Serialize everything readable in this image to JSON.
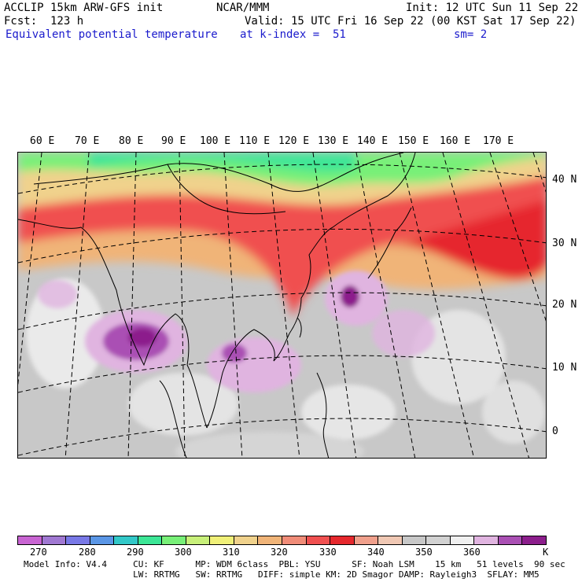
{
  "header": {
    "model": "ACCLIP 15km ARW-GFS init",
    "org": "NCAR/MMM",
    "init": "Init: 12 UTC Sun 11 Sep 22",
    "fcst": "Fcst:  123 h",
    "valid": "Valid: 15 UTC Fri 16 Sep 22 (00 KST Sat 17 Sep 22)",
    "field": "Equivalent potential temperature",
    "level": "at k-index =  51",
    "smooth": "sm= 2"
  },
  "lon_labels": [
    "60 E",
    "70 E",
    "80 E",
    "90 E",
    "100 E",
    "110 E",
    "120 E",
    "130 E",
    "140 E",
    "150 E",
    "160 E",
    "170 E"
  ],
  "lat_labels": [
    "40 N",
    "30 N",
    "20 N",
    "10 N",
    "0"
  ],
  "colorbar": {
    "colors": [
      "#c864d2",
      "#a078d2",
      "#7878e6",
      "#5a96e6",
      "#32c8c8",
      "#3ce696",
      "#78f078",
      "#c8f07a",
      "#f0f078",
      "#f0d28c",
      "#f0b478",
      "#f08c78",
      "#f05050",
      "#e6282d",
      "#f0a08c",
      "#f0c8b4",
      "#c8c8c8",
      "#d2d2d2",
      "#f0f0f0",
      "#e0b4e0",
      "#aa50b4",
      "#8c1e8c"
    ],
    "ticks": [
      "270",
      "280",
      "290",
      "300",
      "310",
      "320",
      "330",
      "340",
      "350",
      "360",
      "K"
    ]
  },
  "footer": {
    "line1": "Model Info: V4.4     CU: KF      MP: WDM 6class  PBL: YSU      SF: Noah LSM    15 km   51 levels  90 sec",
    "line2": "                     LW: RRTMG   SW: RRTMG   DIFF: simple KM: 2D Smagor DAMP: Rayleigh3  SFLAY: MM5"
  }
}
